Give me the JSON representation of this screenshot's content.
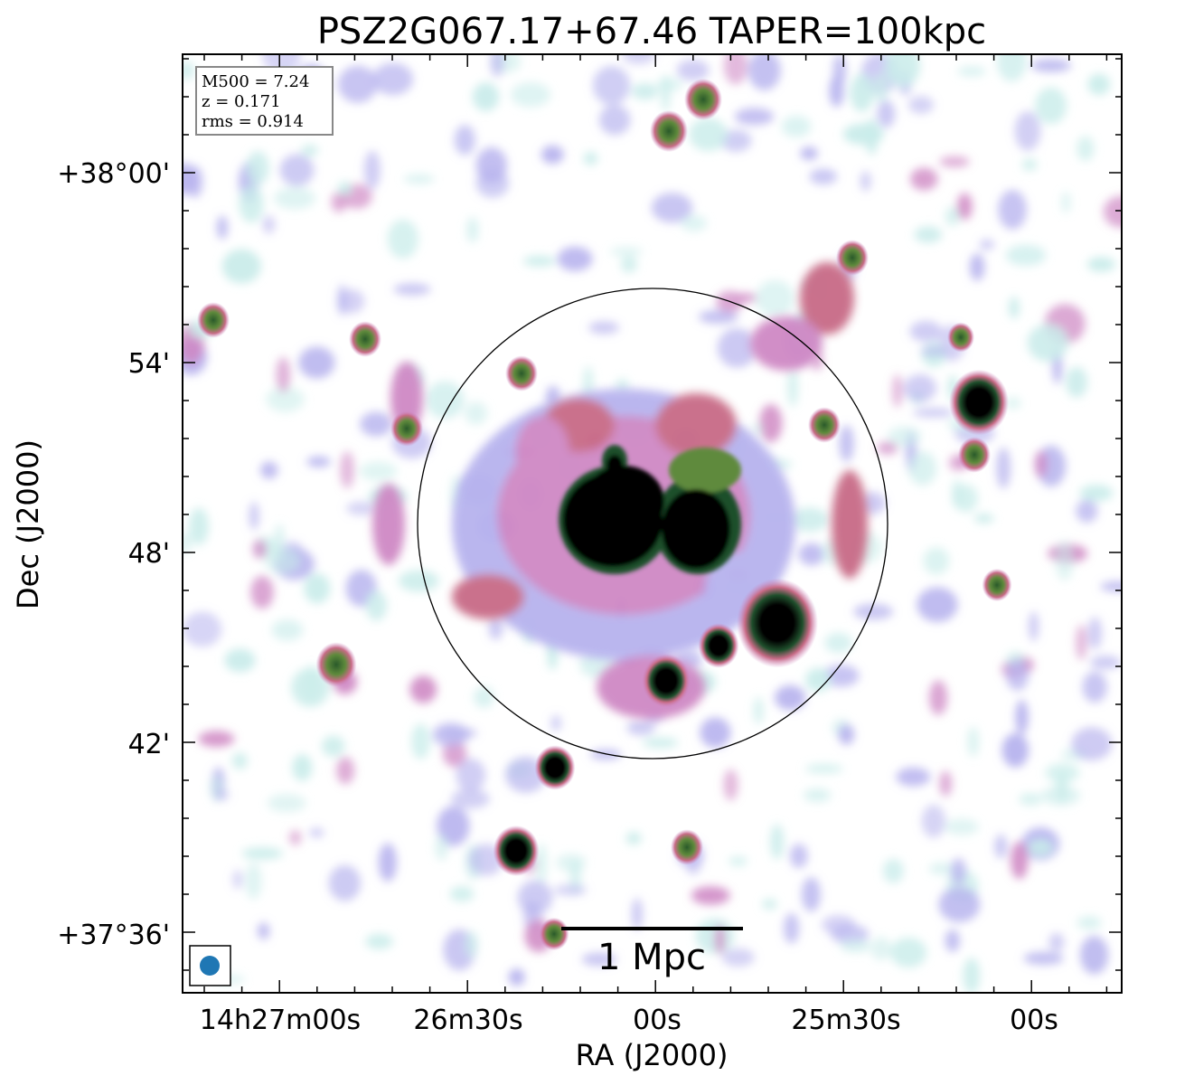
{
  "title": "PSZ2G067.17+67.46 TAPER=100kpc",
  "info_box": {
    "m500": "M500 = 7.24",
    "z": "z = 0.171",
    "rms": "rms = 0.914"
  },
  "axes": {
    "xlabel": "RA (J2000)",
    "ylabel": "Dec (J2000)",
    "x_ticks": [
      "14h27m00s",
      "26m30s",
      "00s",
      "25m30s",
      "00s"
    ],
    "y_ticks": [
      "+38°00'",
      "54'",
      "48'",
      "42'",
      "+37°36'"
    ]
  },
  "scale_bar": {
    "label": "1 Mpc"
  },
  "beam": {
    "icon": "beam-ellipse-icon",
    "color": "#1f77b4"
  },
  "colormap": {
    "name": "cubehelix-like",
    "colors": [
      "#ffffff",
      "#c9ecea",
      "#b7b3ee",
      "#cf88c4",
      "#c86b86",
      "#5f8a3c",
      "#1f4f2c",
      "#000000"
    ]
  },
  "circle": {
    "kind": "R500 circle",
    "stroke": "#000000"
  }
}
